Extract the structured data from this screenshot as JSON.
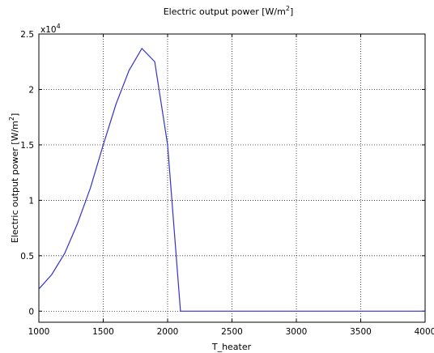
{
  "chart_data": {
    "type": "line",
    "title": "Electric output power [W/m",
    "title_sup": "2",
    "title_suffix": "]",
    "xlabel": "T_heater",
    "ylabel": "Electric output power [W/m",
    "ylabel_sup": "2",
    "ylabel_suffix": "]",
    "xlim": [
      1000,
      4000
    ],
    "ylim": [
      -1000,
      25000
    ],
    "x_ticks": [
      1000,
      1500,
      2000,
      2500,
      3000,
      3500,
      4000
    ],
    "x_tick_labels": [
      "1000",
      "1500",
      "2000",
      "2500",
      "3000",
      "3500",
      "4000"
    ],
    "y_ticks": [
      0,
      5000,
      10000,
      15000,
      20000,
      25000
    ],
    "y_tick_labels": [
      "0",
      "0.5",
      "1",
      "1.5",
      "2",
      "2.5"
    ],
    "y_multiplier_base": "x10",
    "y_multiplier_exp": "4",
    "grid": true,
    "series": [
      {
        "color": "#3333cc",
        "x": [
          1000,
          1100,
          1200,
          1300,
          1400,
          1500,
          1600,
          1700,
          1800,
          1900,
          2000,
          2100,
          2200,
          2400,
          2600,
          2800,
          3000,
          3200,
          3400,
          3600,
          3800,
          4000
        ],
        "y": [
          2000,
          3300,
          5200,
          7900,
          11100,
          15000,
          18700,
          21700,
          23700,
          22500,
          15000,
          0,
          0,
          0,
          0,
          0,
          0,
          0,
          0,
          0,
          0,
          0
        ]
      }
    ]
  }
}
